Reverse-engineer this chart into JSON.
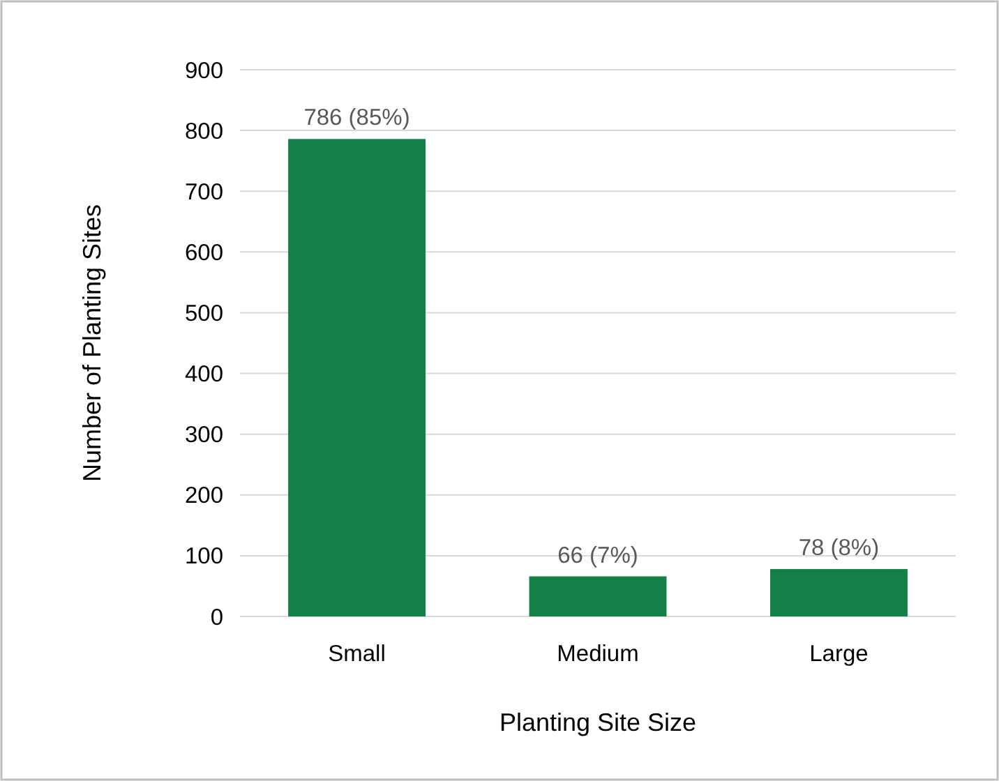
{
  "chart_data": {
    "type": "bar",
    "xlabel": "Planting Site Size",
    "ylabel": "Number of Planting Sites",
    "categories": [
      "Small",
      "Medium",
      "Large"
    ],
    "values": [
      786,
      66,
      78
    ],
    "value_labels": [
      "786 (85%)",
      "66 (7%)",
      "78 (8%)"
    ],
    "color": "#138147",
    "ylim": [
      0,
      900
    ],
    "yticks": [
      0,
      100,
      200,
      300,
      400,
      500,
      600,
      700,
      800,
      900
    ],
    "grid": "y"
  }
}
